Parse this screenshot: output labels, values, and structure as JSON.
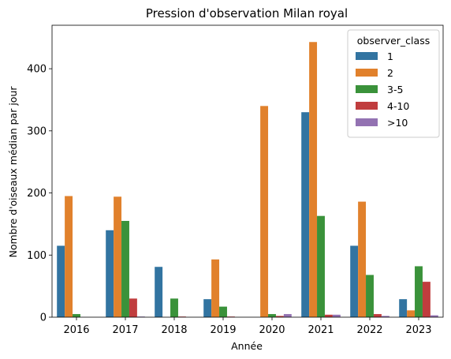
{
  "chart_data": {
    "type": "bar",
    "title": "Pression d'observation Milan royal",
    "xlabel": "Année",
    "ylabel": "Nombre d'oiseaux médian par jour",
    "categories": [
      "2016",
      "2017",
      "2018",
      "2019",
      "2020",
      "2021",
      "2022",
      "2023"
    ],
    "ylim": [
      0,
      470
    ],
    "yticks": [
      0,
      100,
      200,
      300,
      400
    ],
    "grid": false,
    "legend": {
      "title": "observer_class",
      "placement": "top-right"
    },
    "series": [
      {
        "name": "1",
        "color": "#3274a1",
        "values": [
          115,
          140,
          81,
          29,
          0,
          330,
          115,
          29
        ]
      },
      {
        "name": "2",
        "color": "#e1812c",
        "values": [
          195,
          194,
          0,
          93,
          340,
          443,
          186,
          11
        ]
      },
      {
        "name": "3-5",
        "color": "#3a923a",
        "values": [
          5,
          155,
          30,
          17,
          5,
          163,
          68,
          82
        ]
      },
      {
        "name": "4-10",
        "color": "#c03d3e",
        "values": [
          0,
          30,
          1,
          1,
          2,
          4,
          5,
          57
        ]
      },
      {
        "name": ">10",
        "color": "#9372b2",
        "values": [
          0,
          1,
          0,
          0,
          5,
          4,
          2,
          3
        ]
      }
    ]
  }
}
